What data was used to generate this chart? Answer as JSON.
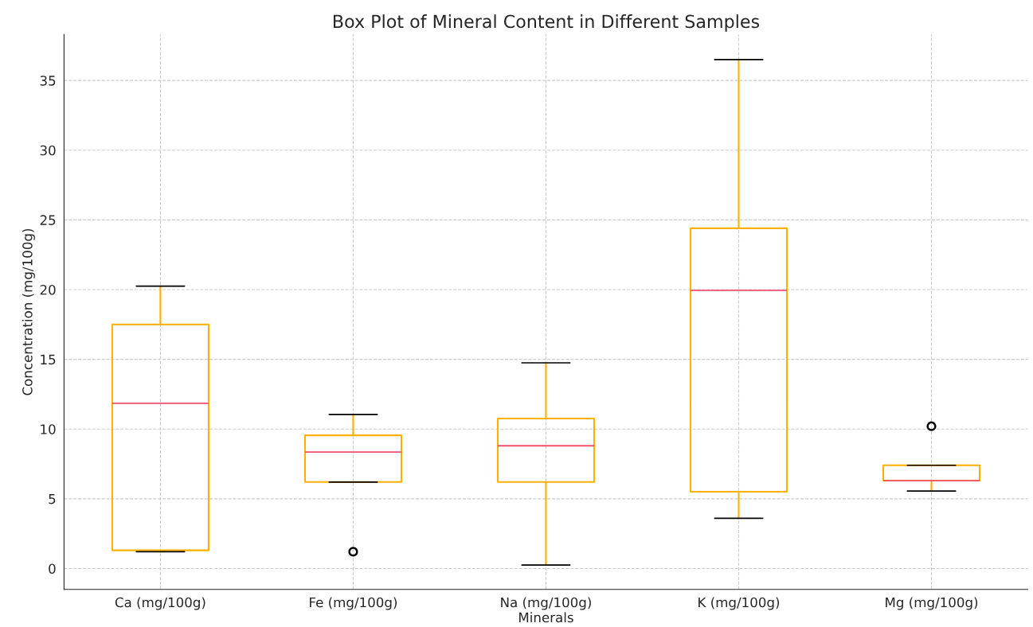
{
  "chart_data": {
    "type": "box",
    "title": "Box Plot of Mineral Content in Different Samples",
    "xlabel": "Minerals",
    "ylabel": "Concentration (mg/100g)",
    "categories": [
      "Ca (mg/100g)",
      "Fe (mg/100g)",
      "Na (mg/100g)",
      "K (mg/100g)",
      "Mg (mg/100g)"
    ],
    "boxes": [
      {
        "low": 1.2,
        "q1": 1.3,
        "median": 11.85,
        "q3": 17.5,
        "high": 20.25
      },
      {
        "low": 6.2,
        "q1": 6.2,
        "median": 8.35,
        "q3": 9.55,
        "high": 11.05,
        "outliers": [
          1.2
        ]
      },
      {
        "low": 0.25,
        "q1": 6.2,
        "median": 8.8,
        "q3": 10.75,
        "high": 14.75
      },
      {
        "low": 3.6,
        "q1": 5.5,
        "median": 19.95,
        "q3": 24.4,
        "high": 36.5
      },
      {
        "low": 5.55,
        "q1": 6.3,
        "median": 6.3,
        "q3": 7.4,
        "high": 7.4,
        "outliers": [
          10.2
        ]
      }
    ],
    "color": "#ffb000",
    "ylim": [
      -1.5,
      38.3
    ],
    "yticks": [
      0,
      5,
      10,
      15,
      20,
      25,
      30,
      35
    ],
    "grid": true
  }
}
